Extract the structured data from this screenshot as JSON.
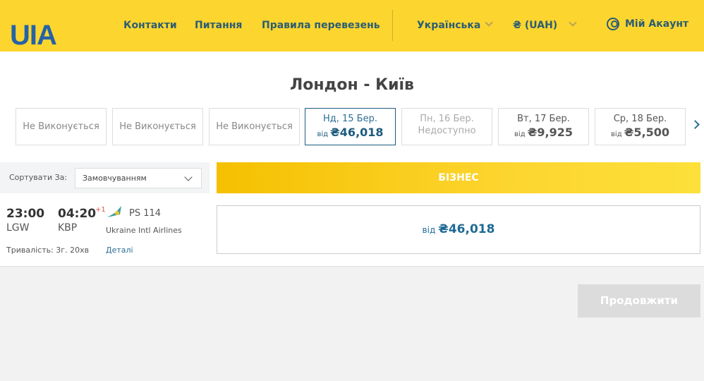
{
  "header": {
    "logo": "UIA",
    "nav": [
      "Контакти",
      "Питання",
      "Правила перевезень"
    ],
    "language": "Українська",
    "currency": "₴ (UAH)",
    "account": "Мій Акаунт"
  },
  "route": {
    "title": "Лондон - Київ"
  },
  "dates": [
    {
      "label": "Не Виконується"
    },
    {
      "label": "Не Виконується"
    },
    {
      "label": "Не Виконується"
    },
    {
      "day": "Нд, 15 Бер.",
      "from": "від",
      "price": "₴46,018",
      "selected": true
    },
    {
      "day": "Пн, 16 Бер.",
      "status": "Недоступно"
    },
    {
      "day": "Вт, 17 Бер.",
      "from": "від",
      "price": "₴9,925"
    },
    {
      "day": "Ср, 18 Бер.",
      "from": "від",
      "price": "₴5,500"
    }
  ],
  "sort": {
    "label": "Сортувати За:",
    "value": "Замовчуванням"
  },
  "fare_class": "БІЗНЕС",
  "flight": {
    "dep_time": "23:00",
    "dep_airport": "LGW",
    "arr_time": "04:20",
    "day_offset": "+1",
    "flight_no": "PS 114",
    "airline": "Ukraine Intl Airlines",
    "duration": "Тривалість: 3г. 20хв",
    "details": "Деталі",
    "from": "від",
    "price": "₴46,018"
  },
  "continue_label": "Продовжити",
  "colors": {
    "header": "#fdd52f",
    "brand": "#2563a6",
    "accent": "#1d6a94"
  }
}
